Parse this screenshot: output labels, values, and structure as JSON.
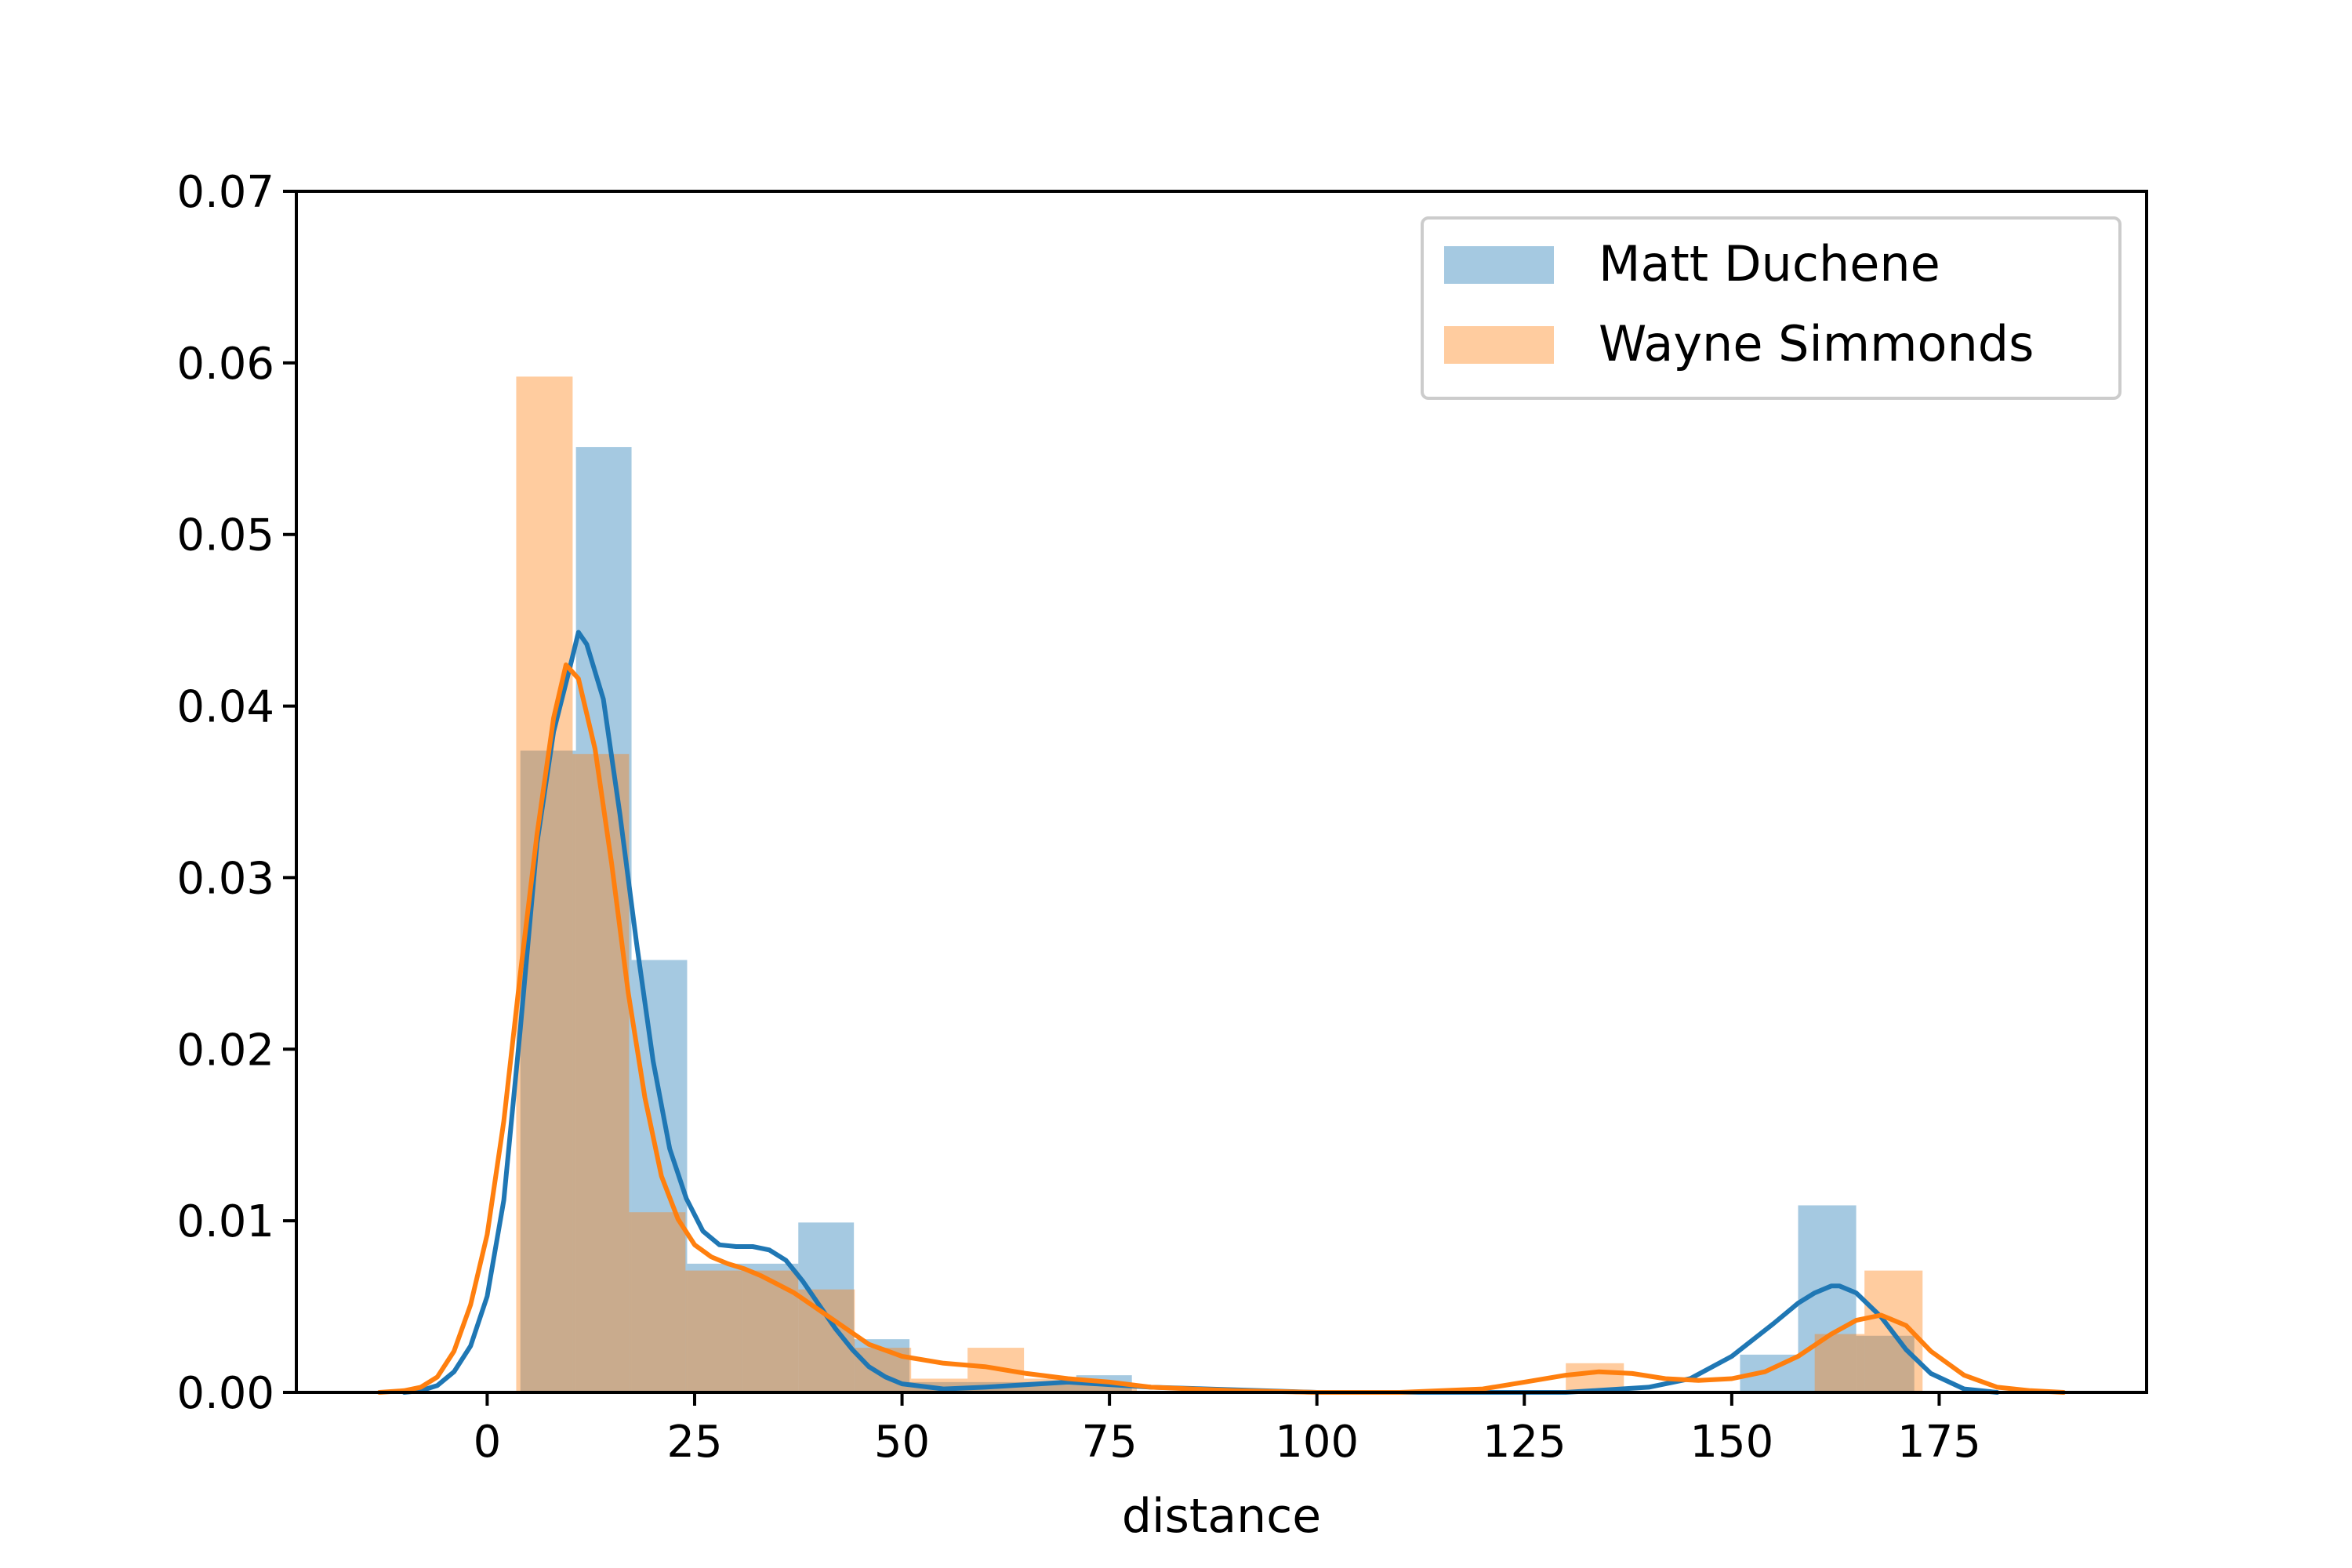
{
  "chart_data": {
    "type": "histogram+kde",
    "xlabel": "distance",
    "ylabel": "",
    "xlim": [
      -23,
      200
    ],
    "ylim": [
      0,
      0.07
    ],
    "xticks": [
      0,
      25,
      50,
      75,
      100,
      125,
      150,
      175
    ],
    "yticks": [
      0.0,
      0.01,
      0.02,
      0.03,
      0.04,
      0.05,
      0.06,
      0.07
    ],
    "xtick_labels": [
      "0",
      "25",
      "50",
      "75",
      "100",
      "125",
      "150",
      "175"
    ],
    "ytick_labels": [
      "0.00",
      "0.01",
      "0.02",
      "0.03",
      "0.04",
      "0.05",
      "0.06",
      "0.07"
    ],
    "grid": false,
    "legend": {
      "placement": "top-right"
    },
    "series": [
      {
        "name": "Matt Duchene",
        "color": "#1f77b4",
        "histogram": {
          "bins": [
            [
              4,
              10.7,
              0.0374
            ],
            [
              10.7,
              17.4,
              0.0551
            ],
            [
              17.4,
              24.1,
              0.0252
            ],
            [
              24.1,
              30.8,
              0.0075
            ],
            [
              30.8,
              37.5,
              0.0075
            ],
            [
              37.5,
              44.2,
              0.0099
            ],
            [
              44.2,
              50.9,
              0.0031
            ],
            [
              50.9,
              57.6,
              0.0006
            ],
            [
              57.6,
              64.3,
              0.0006
            ],
            [
              64.3,
              71.0,
              0.0006
            ],
            [
              71.0,
              77.7,
              0.001
            ],
            [
              144,
              151,
              0.0
            ],
            [
              151,
              158,
              0.0022
            ],
            [
              158,
              165,
              0.0109
            ],
            [
              165,
              172,
              0.0033
            ]
          ]
        },
        "kde": {
          "x": [
            -10,
            -8,
            -6,
            -4,
            -2,
            0,
            2,
            4,
            6,
            8,
            10,
            11,
            12,
            14,
            16,
            18,
            20,
            22,
            24,
            26,
            28,
            30,
            32,
            34,
            36,
            38,
            40,
            42,
            44,
            46,
            48,
            50,
            55,
            60,
            70,
            80,
            100,
            120,
            130,
            140,
            145,
            150,
            155,
            158,
            160,
            162,
            163,
            165,
            168,
            171,
            174,
            178,
            182
          ],
          "y": [
            0.0,
            0.0001,
            0.0004,
            0.0012,
            0.0027,
            0.0056,
            0.0112,
            0.0212,
            0.032,
            0.0385,
            0.0423,
            0.0443,
            0.0436,
            0.0404,
            0.0337,
            0.0262,
            0.0193,
            0.0142,
            0.0113,
            0.0094,
            0.0086,
            0.0085,
            0.0085,
            0.0083,
            0.0077,
            0.0065,
            0.0051,
            0.0037,
            0.0025,
            0.0015,
            0.0009,
            0.0005,
            0.0002,
            0.0003,
            0.0006,
            0.0003,
            0.0,
            0.0,
            0.0,
            0.0003,
            0.0008,
            0.0021,
            0.004,
            0.0052,
            0.0058,
            0.0062,
            0.0062,
            0.0058,
            0.0044,
            0.0025,
            0.0011,
            0.0002,
            0.0
          ]
        }
      },
      {
        "name": "Wayne Simmonds",
        "color": "#ff7f0e",
        "histogram": {
          "bins": [
            [
              3.5,
              10.3,
              0.0592
            ],
            [
              10.3,
              17.1,
              0.0372
            ],
            [
              17.1,
              23.9,
              0.0105
            ],
            [
              23.9,
              30.7,
              0.0071
            ],
            [
              30.7,
              37.5,
              0.0071
            ],
            [
              37.5,
              44.3,
              0.006
            ],
            [
              44.3,
              51.1,
              0.0026
            ],
            [
              51.1,
              57.9,
              0.0008
            ],
            [
              57.9,
              64.7,
              0.0026
            ],
            [
              64.7,
              71.5,
              0.0008
            ],
            [
              71.5,
              78.3,
              0.0005
            ],
            [
              130,
              137,
              0.0017
            ],
            [
              160,
              166,
              0.0034
            ],
            [
              166,
              173,
              0.0071
            ]
          ]
        },
        "kde": {
          "x": [
            -13,
            -10,
            -8,
            -6,
            -4,
            -2,
            0,
            2,
            4,
            6,
            8,
            9.5,
            11,
            13,
            15,
            17,
            19,
            21,
            23,
            25,
            27,
            29,
            31,
            33,
            35,
            37,
            40,
            43,
            46,
            50,
            55,
            60,
            65,
            70,
            75,
            80,
            90,
            100,
            110,
            120,
            125,
            130,
            134,
            138,
            142,
            146,
            150,
            154,
            158,
            162,
            165,
            168,
            171,
            174,
            178,
            182,
            186,
            190
          ],
          "y": [
            0.0,
            0.0001,
            0.0003,
            0.0009,
            0.0024,
            0.0051,
            0.0092,
            0.0158,
            0.0244,
            0.0325,
            0.0393,
            0.0424,
            0.0416,
            0.0375,
            0.0308,
            0.0233,
            0.0172,
            0.0126,
            0.0101,
            0.0086,
            0.0079,
            0.0075,
            0.0072,
            0.0068,
            0.0063,
            0.0058,
            0.0048,
            0.0038,
            0.0028,
            0.0021,
            0.0017,
            0.0015,
            0.0011,
            0.0008,
            0.0006,
            0.0003,
            0.0001,
            0.0,
            0.0,
            0.0002,
            0.0006,
            0.001,
            0.0012,
            0.0011,
            0.0008,
            0.0007,
            0.0008,
            0.0012,
            0.0021,
            0.0034,
            0.0042,
            0.0045,
            0.0039,
            0.0024,
            0.001,
            0.0003,
            0.0001,
            0.0
          ]
        }
      }
    ]
  }
}
